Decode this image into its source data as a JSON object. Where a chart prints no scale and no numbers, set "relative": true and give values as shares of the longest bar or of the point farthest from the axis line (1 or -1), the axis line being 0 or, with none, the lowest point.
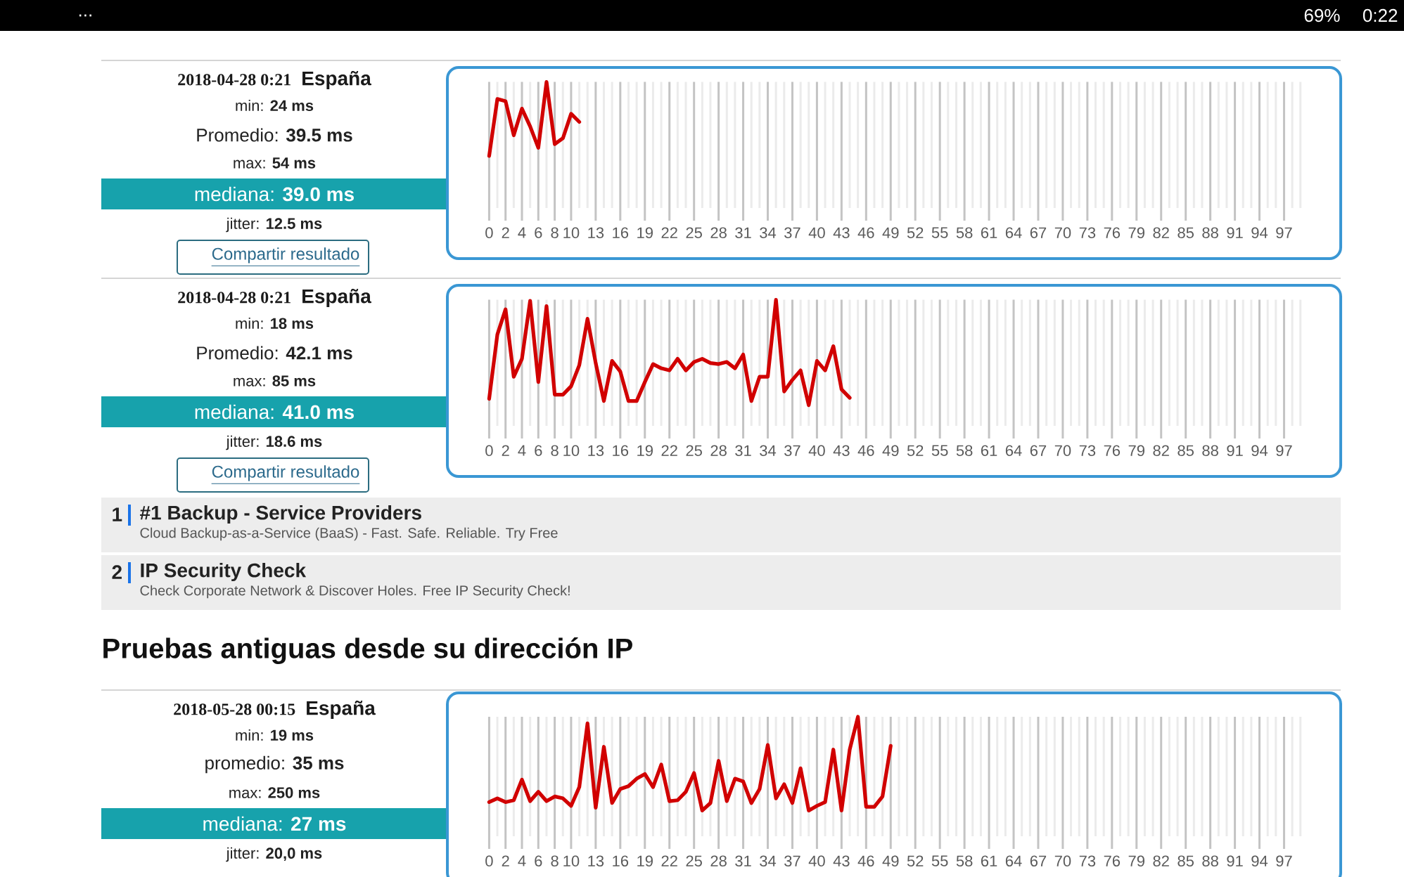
{
  "chart_data": [
    {
      "type": "other",
      "annotations": [
        "...",
        "69%",
        "0:22"
      ]
    },
    {
      "type": "other",
      "title": "2018-04-28 0:21",
      "subtitle": "España",
      "annotations": [
        "min: **24 ms**",
        "Promedio: **39.5 ms**",
        "max: **54 ms**",
        "mediana: **39.0 ms**",
        "jitter: **12.5 ms**",
        "Compartir resultado"
      ]
    },
    {
      "type": "line",
      "relative": true,
      "color": "#d10000",
      "grid": "x",
      "categories": [
        "0",
        null,
        "2",
        null,
        "4",
        null,
        "6",
        null,
        "8",
        null,
        "10",
        null,
        null,
        "13",
        null,
        null,
        "16",
        null,
        null,
        "19",
        null,
        null,
        "22",
        null,
        null,
        "25",
        null,
        null,
        "28",
        null,
        null,
        "31",
        null,
        null,
        "34",
        null,
        null,
        "37",
        null,
        null,
        "40",
        null,
        null,
        "43",
        null,
        null,
        "46",
        null,
        null,
        "49",
        null,
        null,
        "52",
        null,
        null,
        "55",
        null,
        null,
        "58",
        null,
        null,
        "61",
        null,
        null,
        "64",
        null,
        null,
        "67",
        null,
        null,
        "70",
        null,
        null,
        "73",
        null,
        null,
        "76",
        null,
        null,
        "79",
        null,
        null,
        "82",
        null,
        null,
        "85",
        null,
        null,
        "88",
        null,
        null,
        "91",
        null,
        null,
        "94",
        null,
        null,
        "97",
        null,
        null
      ],
      "values": [
        0,
        0.77,
        0.74,
        0.28,
        0.64,
        0.4,
        0.11,
        1,
        0.16,
        0.24,
        0.57,
        0.46,
        null,
        null,
        null,
        null,
        null,
        null,
        null,
        null,
        null,
        null,
        null,
        null,
        null,
        null,
        null,
        null,
        null,
        null,
        null,
        null,
        null,
        null,
        null,
        null,
        null,
        null,
        null,
        null,
        null,
        null,
        null,
        null,
        null,
        null,
        null,
        null,
        null,
        null,
        null,
        null,
        null,
        null,
        null,
        null,
        null,
        null,
        null,
        null,
        null,
        null,
        null,
        null,
        null,
        null,
        null,
        null,
        null,
        null,
        null,
        null,
        null,
        null,
        null,
        null,
        null,
        null,
        null,
        null,
        null,
        null,
        null,
        null,
        null,
        null,
        null,
        null,
        null,
        null,
        null,
        null,
        null,
        null,
        null,
        null,
        null,
        null,
        null,
        null
      ]
    },
    {
      "type": "other",
      "title": "2018-04-28 0:21",
      "subtitle": "España",
      "annotations": [
        "min: **18 ms**",
        "Promedio: **42.1 ms**",
        "max: **85 ms**",
        "mediana: **41.0 ms**",
        "jitter: **18.6 ms**",
        "Compartir resultado"
      ]
    },
    {
      "type": "line",
      "relative": true,
      "color": "#d10000",
      "grid": "x",
      "categories": [
        "0",
        null,
        "2",
        null,
        "4",
        null,
        "6",
        null,
        "8",
        null,
        "10",
        null,
        null,
        "13",
        null,
        null,
        "16",
        null,
        null,
        "19",
        null,
        null,
        "22",
        null,
        null,
        "25",
        null,
        null,
        "28",
        null,
        null,
        "31",
        null,
        null,
        "34",
        null,
        null,
        "37",
        null,
        null,
        "40",
        null,
        null,
        "43",
        null,
        null,
        "46",
        null,
        null,
        "49",
        null,
        null,
        "52",
        null,
        null,
        "55",
        null,
        null,
        "58",
        null,
        null,
        "61",
        null,
        null,
        "64",
        null,
        null,
        "67",
        null,
        null,
        "70",
        null,
        null,
        "73",
        null,
        null,
        "76",
        null,
        null,
        "79",
        null,
        null,
        "82",
        null,
        null,
        "85",
        null,
        null,
        "88",
        null,
        null,
        "91",
        null,
        null,
        "94",
        null,
        null,
        "97",
        null,
        null
      ],
      "values": [
        0.06,
        0.67,
        0.91,
        0.27,
        0.44,
        0.99,
        0.22,
        0.94,
        0.1,
        0.1,
        0.18,
        0.38,
        0.82,
        0.4,
        0.04,
        0.42,
        0.32,
        0.04,
        0.04,
        0.22,
        0.39,
        0.35,
        0.33,
        0.44,
        0.33,
        0.41,
        0.44,
        0.4,
        0.39,
        0.41,
        0.35,
        0.48,
        0.04,
        0.27,
        0.27,
        1,
        0.13,
        0.24,
        0.33,
        0,
        0.42,
        0.33,
        0.56,
        0.15,
        0.07,
        null,
        null,
        null,
        null,
        null,
        null,
        null,
        null,
        null,
        null,
        null,
        null,
        null,
        null,
        null,
        null,
        null,
        null,
        null,
        null,
        null,
        null,
        null,
        null,
        null,
        null,
        null,
        null,
        null,
        null,
        null,
        null,
        null,
        null,
        null,
        null,
        null,
        null,
        null,
        null,
        null,
        null,
        null,
        null,
        null,
        null,
        null,
        null,
        null,
        null,
        null,
        null,
        null,
        null,
        null
      ]
    },
    {
      "type": "other",
      "annotations": [
        "1",
        "#1 Backup - Service Providers",
        "Cloud Backup-as-a-Service (BaaS) - Fast. Safe. Reliable. Try Free",
        "2",
        "IP Security Check",
        "Check Corporate Network & Discover Holes. Free IP Security Check!"
      ]
    },
    {
      "type": "other",
      "title": "Pruebas antiguas desde su dirección IP"
    },
    {
      "type": "other",
      "title": "2018-05-28 00:15",
      "subtitle": "España",
      "annotations": [
        "min: **19 ms**",
        "promedio: **35 ms**",
        "max: **250 ms**",
        "mediana: **27 ms**",
        "jitter: **20,0 ms**"
      ]
    },
    {
      "type": "line",
      "relative": true,
      "color": "#d10000",
      "grid": "x",
      "categories": [
        "0",
        null,
        "2",
        null,
        "4",
        null,
        "6",
        null,
        "8",
        null,
        "10",
        null,
        null,
        "13",
        null,
        null,
        "16",
        null,
        null,
        "19",
        null,
        null,
        "22",
        null,
        null,
        "25",
        null,
        null,
        "28",
        null,
        null,
        "31",
        null,
        null,
        "34",
        null,
        null,
        "37",
        null,
        null,
        "40",
        null,
        null,
        "43",
        null,
        null,
        "46",
        null,
        null,
        "49",
        null,
        null,
        "52",
        null,
        null,
        "55",
        null,
        null,
        "58",
        null,
        null,
        "61",
        null,
        null,
        "64",
        null,
        null,
        "67",
        null,
        null,
        "70",
        null,
        null,
        "73",
        null,
        null,
        "76",
        null,
        null,
        "79",
        null,
        null,
        "82",
        null,
        null,
        "85",
        null,
        null,
        "88",
        null,
        null,
        "91",
        null,
        null,
        "94",
        null,
        null,
        "97",
        null,
        null
      ],
      "values": [
        0.09,
        0.13,
        0.09,
        0.11,
        0.33,
        0.1,
        0.2,
        0.1,
        0.15,
        0.13,
        0.05,
        0.25,
        0.93,
        0.03,
        0.68,
        0.08,
        0.23,
        0.26,
        0.34,
        0.39,
        0.25,
        0.49,
        0.1,
        0.11,
        0.2,
        0.4,
        0,
        0.08,
        0.53,
        0.1,
        0.34,
        0.31,
        0.08,
        0.23,
        0.7,
        0.13,
        0.28,
        0.08,
        0.45,
        0,
        0.05,
        0.09,
        0.65,
        0,
        0.65,
        1,
        0.04,
        0.04,
        0.15,
        0.69,
        null,
        null,
        null,
        null,
        null,
        null,
        null,
        null,
        null,
        null,
        null,
        null,
        null,
        null,
        null,
        null,
        null,
        null,
        null,
        null,
        null,
        null,
        null,
        null,
        null,
        null,
        null,
        null,
        null,
        null,
        null,
        null,
        null,
        null,
        null,
        null,
        null,
        null,
        null,
        null,
        null,
        null,
        null,
        null,
        null,
        null,
        null,
        null,
        null,
        null
      ]
    }
  ]
}
